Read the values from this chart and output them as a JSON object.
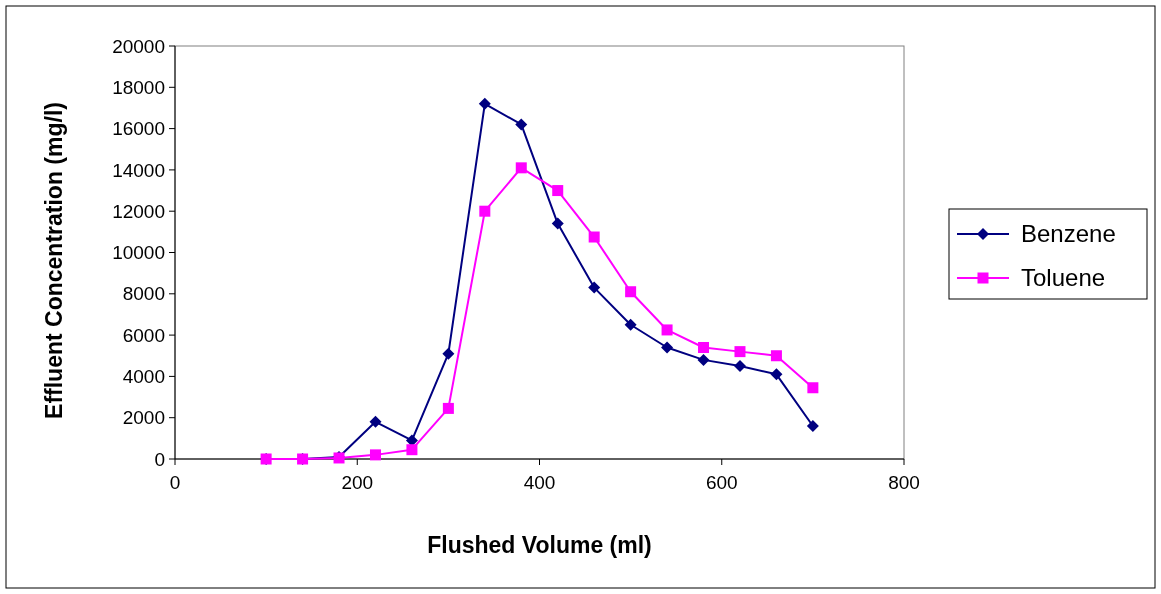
{
  "chart_data": {
    "type": "line",
    "xlabel": "Flushed Volume (ml)",
    "ylabel": "Effluent Concentration (mg/l)",
    "xlim": [
      0,
      800
    ],
    "xticks": [
      0,
      200,
      400,
      600,
      800
    ],
    "ylim": [
      0,
      20000
    ],
    "yticks": [
      0,
      2000,
      4000,
      6000,
      8000,
      10000,
      12000,
      14000,
      16000,
      18000,
      20000
    ],
    "grid": false,
    "legend": "right",
    "line_style": "solid",
    "series": [
      {
        "name": "Benzene",
        "color": "#000080",
        "marker": "diamond",
        "x": [
          100,
          140,
          180,
          220,
          260,
          300,
          340,
          380,
          420,
          460,
          500,
          540,
          580,
          620,
          660,
          700
        ],
        "values": [
          0,
          0,
          100,
          1800,
          900,
          5100,
          17200,
          16200,
          11400,
          8300,
          6500,
          5400,
          4800,
          4500,
          4100,
          1600
        ]
      },
      {
        "name": "Toluene",
        "color": "#ff00ff",
        "marker": "square",
        "x": [
          100,
          140,
          180,
          220,
          260,
          300,
          340,
          380,
          420,
          460,
          500,
          540,
          580,
          620,
          660,
          700
        ],
        "values": [
          0,
          0,
          50,
          200,
          450,
          2450,
          12000,
          14100,
          13000,
          10750,
          8100,
          6250,
          5400,
          5200,
          5000,
          3450
        ]
      }
    ]
  }
}
